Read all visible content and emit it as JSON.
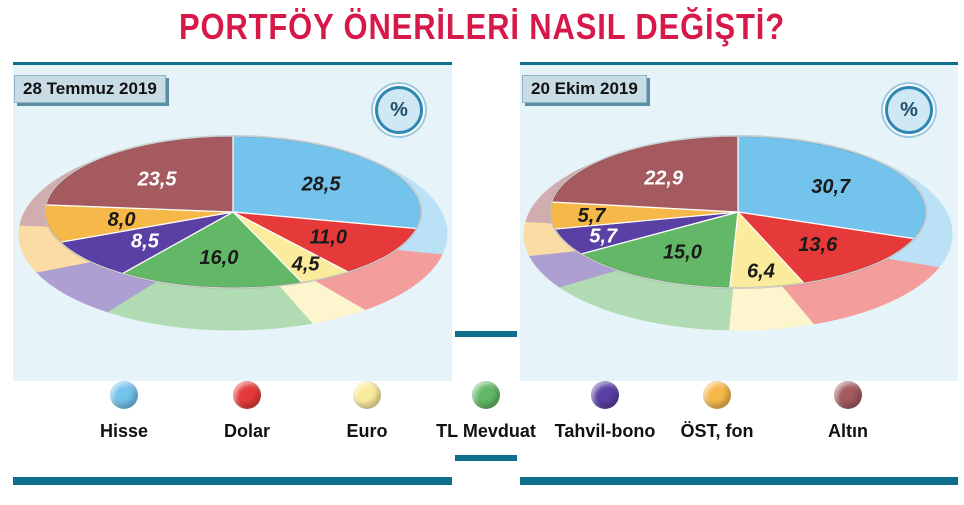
{
  "title": "PORTFÖY ÖNERİLERİ NASIL DEĞİŞTİ?",
  "percent_badge": "%",
  "chart_data": [
    {
      "type": "pie",
      "title": "28 Temmuz 2019",
      "unit": "%",
      "slices": [
        {
          "label": "Hisse",
          "value": 28.5,
          "display": "28,5"
        },
        {
          "label": "Dolar",
          "value": 11.0,
          "display": "11,0"
        },
        {
          "label": "Euro",
          "value": 4.5,
          "display": "4,5"
        },
        {
          "label": "TL Mevduat",
          "value": 16.0,
          "display": "16,0"
        },
        {
          "label": "Tahvil-bono",
          "value": 8.5,
          "display": "8,5"
        },
        {
          "label": "ÖST, fon",
          "value": 8.0,
          "display": "8,0"
        },
        {
          "label": "Altın",
          "value": 23.5,
          "display": "23,5"
        }
      ]
    },
    {
      "type": "pie",
      "title": "20 Ekim 2019",
      "unit": "%",
      "slices": [
        {
          "label": "Hisse",
          "value": 30.7,
          "display": "30,7"
        },
        {
          "label": "Dolar",
          "value": 13.6,
          "display": "13,6"
        },
        {
          "label": "Euro",
          "value": 6.4,
          "display": "6,4"
        },
        {
          "label": "TL Mevduat",
          "value": 15.0,
          "display": "15,0"
        },
        {
          "label": "Tahvil-bono",
          "value": 5.7,
          "display": "5,7"
        },
        {
          "label": "ÖST, fon",
          "value": 5.7,
          "display": "5,7"
        },
        {
          "label": "Altın",
          "value": 22.9,
          "display": "22,9"
        }
      ]
    }
  ],
  "legend": [
    {
      "label": "Hisse",
      "color": "#74c3ec"
    },
    {
      "label": "Dolar",
      "color": "#e63a3a"
    },
    {
      "label": "Euro",
      "color": "#fbeb9c"
    },
    {
      "label": "TL Mevduat",
      "color": "#63b867"
    },
    {
      "label": "Tahvil-bono",
      "color": "#5a3fa4"
    },
    {
      "label": "ÖST, fon",
      "color": "#f7b84a"
    },
    {
      "label": "Altın",
      "color": "#a45a5e"
    }
  ]
}
